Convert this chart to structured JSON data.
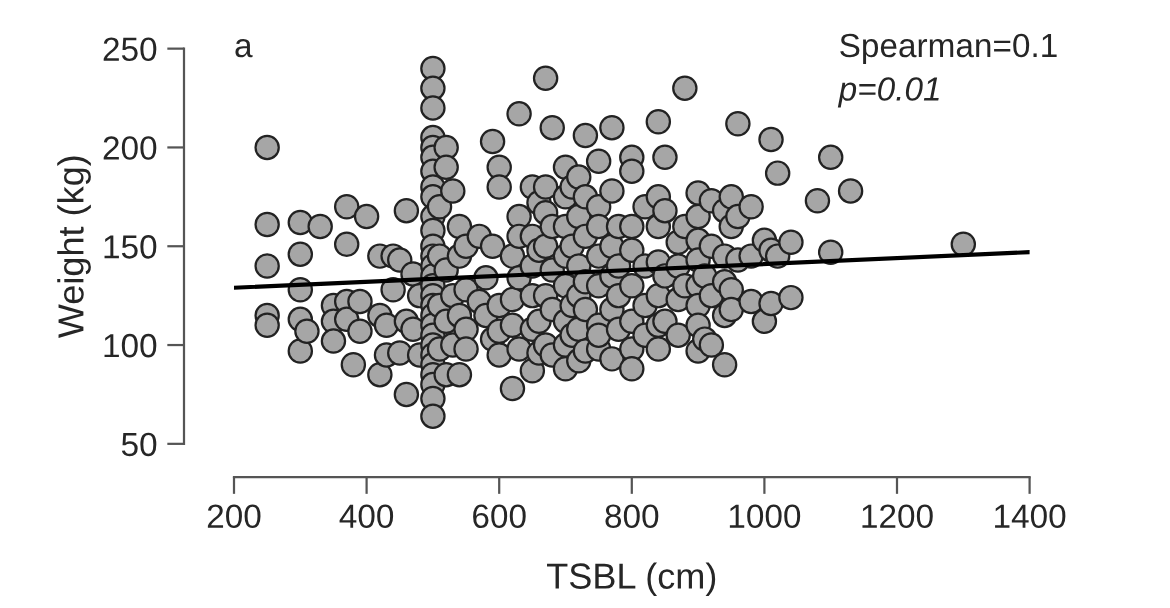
{
  "chart_data": {
    "type": "scatter",
    "xlabel": "TSBL (cm)",
    "ylabel": "Weight (kg)",
    "xlim": [
      200,
      1400
    ],
    "ylim": [
      50,
      250
    ],
    "xticks": [
      200,
      400,
      600,
      800,
      1000,
      1200,
      1400
    ],
    "yticks": [
      50,
      100,
      150,
      200,
      250
    ],
    "grid": false,
    "annotations": [
      "a",
      "Spearman=0.1",
      "p=0.01"
    ],
    "series": [
      {
        "marker": "circle",
        "color": "#a6a6a6",
        "x": [
          250,
          250,
          250,
          250,
          250,
          300,
          300,
          300,
          300,
          300,
          310,
          330,
          350,
          350,
          350,
          370,
          370,
          370,
          370,
          380,
          390,
          390,
          400,
          420,
          420,
          420,
          430,
          430,
          440,
          440,
          450,
          450,
          460,
          460,
          460,
          470,
          470,
          480,
          480,
          500,
          500,
          500,
          500,
          500,
          500,
          500,
          500,
          500,
          500,
          500,
          500,
          500,
          500,
          500,
          500,
          500,
          500,
          500,
          500,
          500,
          500,
          500,
          500,
          500,
          500,
          500,
          500,
          510,
          510,
          510,
          510,
          520,
          520,
          520,
          520,
          520,
          530,
          530,
          530,
          540,
          540,
          540,
          540,
          550,
          550,
          550,
          550,
          570,
          570,
          580,
          580,
          590,
          590,
          590,
          600,
          600,
          600,
          600,
          600,
          620,
          620,
          620,
          620,
          630,
          630,
          630,
          630,
          630,
          650,
          650,
          650,
          650,
          650,
          650,
          660,
          660,
          660,
          660,
          670,
          670,
          670,
          670,
          670,
          670,
          680,
          680,
          680,
          680,
          680,
          700,
          700,
          700,
          700,
          700,
          700,
          700,
          700,
          710,
          710,
          710,
          710,
          720,
          720,
          720,
          720,
          720,
          720,
          730,
          730,
          730,
          730,
          730,
          730,
          750,
          750,
          750,
          750,
          750,
          750,
          750,
          750,
          770,
          770,
          770,
          770,
          770,
          770,
          780,
          780,
          780,
          780,
          800,
          800,
          800,
          800,
          800,
          800,
          800,
          800,
          820,
          820,
          820,
          820,
          840,
          840,
          840,
          840,
          840,
          840,
          840,
          850,
          850,
          850,
          850,
          870,
          870,
          870,
          870,
          880,
          880,
          880,
          900,
          900,
          900,
          900,
          900,
          900,
          900,
          900,
          910,
          910,
          920,
          920,
          920,
          920,
          940,
          940,
          940,
          940,
          940,
          950,
          950,
          950,
          950,
          960,
          960,
          960,
          980,
          980,
          980,
          1000,
          1000,
          1010,
          1010,
          1010,
          1020,
          1020,
          1040,
          1040,
          1080,
          1100,
          1100,
          1130,
          1300
        ],
        "values": [
          200,
          161,
          140,
          115,
          110,
          162,
          146,
          128,
          113,
          97,
          107,
          160,
          120,
          112,
          102,
          170,
          151,
          122,
          113,
          90,
          122,
          107,
          165,
          145,
          115,
          85,
          110,
          95,
          145,
          128,
          143,
          96,
          168,
          112,
          75,
          136,
          108,
          125,
          95,
          240,
          230,
          220,
          205,
          200,
          195,
          188,
          180,
          175,
          165,
          158,
          150,
          145,
          140,
          135,
          130,
          125,
          120,
          115,
          110,
          105,
          100,
          95,
          90,
          85,
          80,
          73,
          64,
          170,
          145,
          120,
          98,
          200,
          190,
          138,
          112,
          85,
          178,
          125,
          100,
          160,
          145,
          115,
          85,
          150,
          128,
          108,
          98,
          122,
          155,
          115,
          134,
          203,
          150,
          103,
          190,
          180,
          120,
          107,
          95,
          145,
          123,
          110,
          78,
          217,
          165,
          155,
          134,
          98,
          180,
          155,
          140,
          125,
          108,
          87,
          172,
          148,
          112,
          96,
          235,
          180,
          167,
          150,
          125,
          100,
          210,
          160,
          138,
          118,
          95,
          190,
          175,
          160,
          145,
          130,
          112,
          100,
          88,
          180,
          150,
          120,
          105,
          185,
          165,
          140,
          125,
          108,
          92,
          206,
          175,
          155,
          132,
          118,
          97,
          193,
          170,
          160,
          145,
          130,
          110,
          98,
          105,
          210,
          178,
          150,
          135,
          118,
          93,
          160,
          140,
          125,
          108,
          195,
          188,
          160,
          148,
          130,
          112,
          98,
          88,
          170,
          140,
          120,
          105,
          213,
          175,
          160,
          142,
          125,
          110,
          98,
          195,
          168,
          135,
          112,
          152,
          140,
          123,
          105,
          230,
          160,
          130,
          177,
          165,
          153,
          143,
          130,
          120,
          110,
          97,
          135,
          103,
          173,
          150,
          125,
          100,
          168,
          145,
          132,
          115,
          90,
          175,
          160,
          128,
          118,
          212,
          165,
          143,
          170,
          145,
          122,
          153,
          112,
          204,
          148,
          121,
          187,
          145,
          152,
          124,
          173,
          195,
          147,
          178,
          151
        ]
      },
      {
        "type": "line",
        "color": "#000000",
        "x": [
          200,
          1400
        ],
        "values": [
          129,
          147
        ]
      }
    ]
  }
}
